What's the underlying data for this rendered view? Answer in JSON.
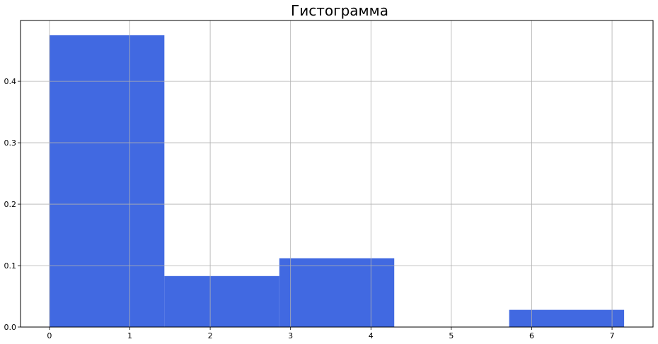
{
  "chart_data": {
    "type": "bar",
    "title": "Гистограмма",
    "xlabel": "",
    "ylabel": "",
    "bins": [
      {
        "x0": 0.0,
        "x1": 1.43,
        "value": 0.475
      },
      {
        "x0": 1.43,
        "x1": 2.86,
        "value": 0.083
      },
      {
        "x0": 2.86,
        "x1": 4.29,
        "value": 0.112
      },
      {
        "x0": 4.29,
        "x1": 5.72,
        "value": 0.0
      },
      {
        "x0": 5.72,
        "x1": 7.15,
        "value": 0.028
      }
    ],
    "xlim": [
      -0.36,
      7.51
    ],
    "ylim": [
      0,
      0.499
    ],
    "xticks": [
      0,
      1,
      2,
      3,
      4,
      5,
      6,
      7
    ],
    "yticks": [
      0.0,
      0.1,
      0.2,
      0.3,
      0.4
    ],
    "ytick_labels": [
      "0.0",
      "0.1",
      "0.2",
      "0.3",
      "0.4"
    ],
    "grid": true,
    "bar_color": "#4169e1",
    "grid_color": "#b0b0b0",
    "axis_color": "#000000"
  }
}
